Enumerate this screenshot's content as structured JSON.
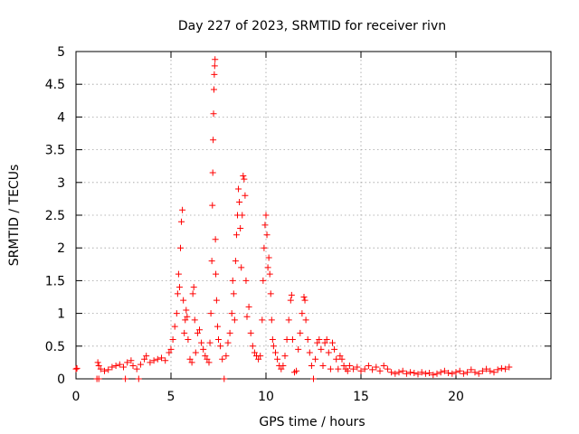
{
  "chart_data": {
    "type": "scatter",
    "title": "Day 227 of 2023, SRMTID for receiver rivn",
    "xlabel": "GPS time / hours",
    "ylabel": "SRMTID / TECUs",
    "xlim": [
      0,
      25
    ],
    "ylim": [
      0,
      5
    ],
    "xticks": [
      0,
      5,
      10,
      15,
      20
    ],
    "yticks": [
      0,
      0.5,
      1,
      1.5,
      2,
      2.5,
      3,
      3.5,
      4,
      4.5,
      5
    ],
    "xtick_labels": [
      "0",
      "5",
      "10",
      "15",
      "20"
    ],
    "ytick_labels": [
      "0",
      "0.5",
      "1",
      "1.5",
      "2",
      "2.5",
      "3",
      "3.5",
      "4",
      "4.5",
      "5"
    ],
    "grid": true,
    "marker": "+",
    "color": "#ff0000",
    "series": [
      {
        "name": "SRMTID",
        "points": [
          [
            0.0,
            0.15
          ],
          [
            0.05,
            0.16
          ],
          [
            1.1,
            0.0
          ],
          [
            1.2,
            0.0
          ],
          [
            1.15,
            0.25
          ],
          [
            1.2,
            0.2
          ],
          [
            1.3,
            0.15
          ],
          [
            1.5,
            0.12
          ],
          [
            1.7,
            0.14
          ],
          [
            1.9,
            0.18
          ],
          [
            2.1,
            0.2
          ],
          [
            2.3,
            0.22
          ],
          [
            2.5,
            0.18
          ],
          [
            2.6,
            0.0
          ],
          [
            2.7,
            0.25
          ],
          [
            2.9,
            0.28
          ],
          [
            3.0,
            0.2
          ],
          [
            3.2,
            0.15
          ],
          [
            3.3,
            0.0
          ],
          [
            3.4,
            0.22
          ],
          [
            3.6,
            0.3
          ],
          [
            3.7,
            0.35
          ],
          [
            3.9,
            0.25
          ],
          [
            4.1,
            0.28
          ],
          [
            4.3,
            0.3
          ],
          [
            4.5,
            0.32
          ],
          [
            4.7,
            0.28
          ],
          [
            4.9,
            0.4
          ],
          [
            5.0,
            0.45
          ],
          [
            5.1,
            0.6
          ],
          [
            5.2,
            0.8
          ],
          [
            5.3,
            1.0
          ],
          [
            5.35,
            1.3
          ],
          [
            5.4,
            1.6
          ],
          [
            5.45,
            1.4
          ],
          [
            5.5,
            2.0
          ],
          [
            5.55,
            2.4
          ],
          [
            5.6,
            2.58
          ],
          [
            5.65,
            1.2
          ],
          [
            5.7,
            0.7
          ],
          [
            5.75,
            0.9
          ],
          [
            5.8,
            1.05
          ],
          [
            5.85,
            0.95
          ],
          [
            5.9,
            0.6
          ],
          [
            6.0,
            0.3
          ],
          [
            6.1,
            0.25
          ],
          [
            6.15,
            1.3
          ],
          [
            6.2,
            1.4
          ],
          [
            6.25,
            0.9
          ],
          [
            6.3,
            0.4
          ],
          [
            6.4,
            0.7
          ],
          [
            6.5,
            0.75
          ],
          [
            6.6,
            0.55
          ],
          [
            6.7,
            0.45
          ],
          [
            6.8,
            0.35
          ],
          [
            6.9,
            0.3
          ],
          [
            7.0,
            0.25
          ],
          [
            7.05,
            0.55
          ],
          [
            7.1,
            1.0
          ],
          [
            7.15,
            1.8
          ],
          [
            7.18,
            2.65
          ],
          [
            7.2,
            3.15
          ],
          [
            7.22,
            3.65
          ],
          [
            7.24,
            4.05
          ],
          [
            7.26,
            4.42
          ],
          [
            7.28,
            4.65
          ],
          [
            7.3,
            4.78
          ],
          [
            7.32,
            4.88
          ],
          [
            7.34,
            2.13
          ],
          [
            7.36,
            1.6
          ],
          [
            7.4,
            1.2
          ],
          [
            7.45,
            0.8
          ],
          [
            7.5,
            0.6
          ],
          [
            7.6,
            0.5
          ],
          [
            7.7,
            0.3
          ],
          [
            7.8,
            0.0
          ],
          [
            7.9,
            0.35
          ],
          [
            8.0,
            0.55
          ],
          [
            8.1,
            0.7
          ],
          [
            8.2,
            1.0
          ],
          [
            8.25,
            1.5
          ],
          [
            8.3,
            1.3
          ],
          [
            8.35,
            0.9
          ],
          [
            8.4,
            1.8
          ],
          [
            8.45,
            2.2
          ],
          [
            8.5,
            2.5
          ],
          [
            8.55,
            2.9
          ],
          [
            8.6,
            2.7
          ],
          [
            8.65,
            2.3
          ],
          [
            8.7,
            1.7
          ],
          [
            8.75,
            2.5
          ],
          [
            8.8,
            3.1
          ],
          [
            8.85,
            3.05
          ],
          [
            8.9,
            2.8
          ],
          [
            8.95,
            1.5
          ],
          [
            9.0,
            0.95
          ],
          [
            9.1,
            1.1
          ],
          [
            9.2,
            0.7
          ],
          [
            9.3,
            0.5
          ],
          [
            9.4,
            0.4
          ],
          [
            9.5,
            0.35
          ],
          [
            9.6,
            0.3
          ],
          [
            9.7,
            0.35
          ],
          [
            9.8,
            0.9
          ],
          [
            9.85,
            1.5
          ],
          [
            9.9,
            2.0
          ],
          [
            9.95,
            2.35
          ],
          [
            10.0,
            2.5
          ],
          [
            10.05,
            2.2
          ],
          [
            10.1,
            1.7
          ],
          [
            10.15,
            1.85
          ],
          [
            10.2,
            1.6
          ],
          [
            10.25,
            1.3
          ],
          [
            10.3,
            0.9
          ],
          [
            10.35,
            0.6
          ],
          [
            10.4,
            0.5
          ],
          [
            10.5,
            0.4
          ],
          [
            10.6,
            0.3
          ],
          [
            10.7,
            0.2
          ],
          [
            10.8,
            0.15
          ],
          [
            10.9,
            0.2
          ],
          [
            11.0,
            0.35
          ],
          [
            11.1,
            0.6
          ],
          [
            11.2,
            0.9
          ],
          [
            11.3,
            1.2
          ],
          [
            11.35,
            1.28
          ],
          [
            11.4,
            0.6
          ],
          [
            11.5,
            0.1
          ],
          [
            11.6,
            0.12
          ],
          [
            11.7,
            0.45
          ],
          [
            11.8,
            0.7
          ],
          [
            11.9,
            1.0
          ],
          [
            12.0,
            1.25
          ],
          [
            12.05,
            1.2
          ],
          [
            12.1,
            0.9
          ],
          [
            12.2,
            0.6
          ],
          [
            12.3,
            0.4
          ],
          [
            12.4,
            0.2
          ],
          [
            12.5,
            0.0
          ],
          [
            12.6,
            0.3
          ],
          [
            12.7,
            0.55
          ],
          [
            12.8,
            0.6
          ],
          [
            12.9,
            0.45
          ],
          [
            13.0,
            0.2
          ],
          [
            13.1,
            0.55
          ],
          [
            13.2,
            0.6
          ],
          [
            13.3,
            0.4
          ],
          [
            13.4,
            0.15
          ],
          [
            13.5,
            0.55
          ],
          [
            13.6,
            0.45
          ],
          [
            13.7,
            0.3
          ],
          [
            13.8,
            0.15
          ],
          [
            13.9,
            0.35
          ],
          [
            14.0,
            0.3
          ],
          [
            14.1,
            0.2
          ],
          [
            14.2,
            0.15
          ],
          [
            14.3,
            0.12
          ],
          [
            14.4,
            0.2
          ],
          [
            14.6,
            0.15
          ],
          [
            14.8,
            0.18
          ],
          [
            15.0,
            0.12
          ],
          [
            15.2,
            0.15
          ],
          [
            15.4,
            0.2
          ],
          [
            15.6,
            0.14
          ],
          [
            15.8,
            0.18
          ],
          [
            16.0,
            0.12
          ],
          [
            16.2,
            0.2
          ],
          [
            16.4,
            0.15
          ],
          [
            16.6,
            0.1
          ],
          [
            16.8,
            0.08
          ],
          [
            17.0,
            0.1
          ],
          [
            17.2,
            0.12
          ],
          [
            17.4,
            0.08
          ],
          [
            17.6,
            0.1
          ],
          [
            17.8,
            0.09
          ],
          [
            18.0,
            0.07
          ],
          [
            18.2,
            0.1
          ],
          [
            18.4,
            0.08
          ],
          [
            18.6,
            0.09
          ],
          [
            18.8,
            0.06
          ],
          [
            19.0,
            0.08
          ],
          [
            19.2,
            0.1
          ],
          [
            19.4,
            0.12
          ],
          [
            19.6,
            0.09
          ],
          [
            19.8,
            0.08
          ],
          [
            20.0,
            0.1
          ],
          [
            20.2,
            0.12
          ],
          [
            20.4,
            0.08
          ],
          [
            20.6,
            0.1
          ],
          [
            20.8,
            0.14
          ],
          [
            21.0,
            0.1
          ],
          [
            21.2,
            0.08
          ],
          [
            21.4,
            0.12
          ],
          [
            21.6,
            0.15
          ],
          [
            21.8,
            0.12
          ],
          [
            22.0,
            0.1
          ],
          [
            22.2,
            0.14
          ],
          [
            22.4,
            0.16
          ],
          [
            22.6,
            0.15
          ],
          [
            22.8,
            0.18
          ]
        ]
      }
    ]
  }
}
